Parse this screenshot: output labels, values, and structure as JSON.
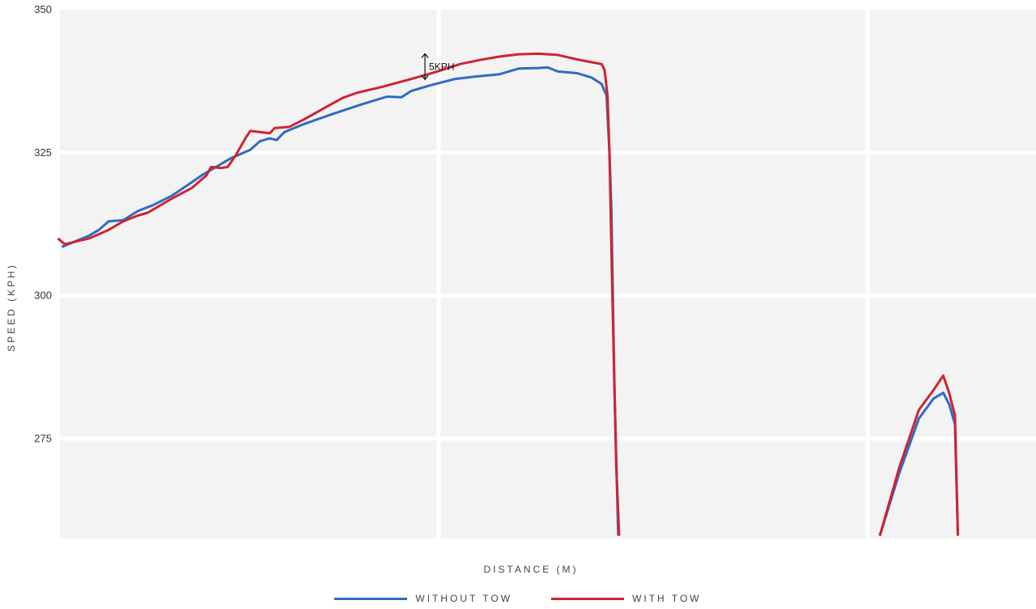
{
  "chart_data": {
    "type": "line",
    "title": "",
    "xlabel": "DISTANCE (M)",
    "ylabel": "SPEED (KPH)",
    "ylim": [
      257.5,
      350
    ],
    "xlim": [
      0,
      1000
    ],
    "yticks": [
      275,
      300,
      325,
      350
    ],
    "grid": true,
    "legend_position": "bottom-center",
    "annotation": {
      "text": "5KPH",
      "x": 374,
      "y_top": 342.3,
      "y_bottom": 337.8
    },
    "series": [
      {
        "name": "WITHOUT TOW",
        "color": "#2e6cc4",
        "segments": [
          [
            [
              2,
              308.5
            ],
            [
              30,
              310.5
            ],
            [
              40,
              311.5
            ],
            [
              50,
              313
            ],
            [
              65,
              313.2
            ],
            [
              80,
              314.8
            ],
            [
              95,
              315.8
            ],
            [
              115,
              317.5
            ],
            [
              135,
              319.8
            ],
            [
              145,
              321
            ],
            [
              175,
              324
            ],
            [
              195,
              325.5
            ],
            [
              205,
              327
            ],
            [
              215,
              327.5
            ],
            [
              222,
              327.2
            ],
            [
              230,
              328.6
            ],
            [
              250,
              330
            ],
            [
              280,
              331.8
            ],
            [
              310,
              333.5
            ],
            [
              335,
              334.8
            ],
            [
              350,
              334.7
            ],
            [
              360,
              335.8
            ],
            [
              380,
              336.8
            ],
            [
              405,
              337.9
            ],
            [
              425,
              338.3
            ],
            [
              450,
              338.7
            ],
            [
              470,
              339.7
            ],
            [
              490,
              339.8
            ],
            [
              500,
              339.9
            ],
            [
              510,
              339.2
            ],
            [
              530,
              338.9
            ],
            [
              545,
              338.1
            ],
            [
              555,
              337
            ],
            [
              560,
              335
            ],
            [
              563,
              325
            ],
            [
              565,
              315
            ],
            [
              568,
              285
            ],
            [
              572,
              258
            ]
          ],
          [
            [
              840,
              258
            ],
            [
              860,
              269
            ],
            [
              880,
              278.5
            ],
            [
              895,
              282
            ],
            [
              905,
              283
            ],
            [
              911,
              281
            ],
            [
              917,
              277.5
            ],
            [
              920,
              258
            ]
          ]
        ]
      },
      {
        "name": "WITH TOW",
        "color": "#d0232f",
        "segments": [
          [
            [
              -2,
              310
            ],
            [
              5,
              309
            ],
            [
              30,
              310
            ],
            [
              50,
              311.5
            ],
            [
              65,
              313
            ],
            [
              80,
              314
            ],
            [
              90,
              314.5
            ],
            [
              100,
              315.5
            ],
            [
              115,
              317
            ],
            [
              135,
              318.8
            ],
            [
              150,
              321
            ],
            [
              155,
              322.5
            ],
            [
              165,
              322.3
            ],
            [
              172,
              322.5
            ],
            [
              180,
              324.5
            ],
            [
              190,
              327.5
            ],
            [
              195,
              328.8
            ],
            [
              215,
              328.4
            ],
            [
              220,
              329.3
            ],
            [
              235,
              329.5
            ],
            [
              250,
              330.8
            ],
            [
              275,
              333.2
            ],
            [
              290,
              334.6
            ],
            [
              305,
              335.5
            ],
            [
              330,
              336.5
            ],
            [
              360,
              337.9
            ],
            [
              385,
              339.1
            ],
            [
              410,
              340.5
            ],
            [
              430,
              341.2
            ],
            [
              450,
              341.8
            ],
            [
              470,
              342.2
            ],
            [
              490,
              342.3
            ],
            [
              510,
              342.1
            ],
            [
              530,
              341.3
            ],
            [
              545,
              340.8
            ],
            [
              555,
              340.5
            ],
            [
              558,
              339.5
            ],
            [
              561,
              335
            ],
            [
              563,
              325
            ],
            [
              566,
              300
            ],
            [
              570,
              270
            ],
            [
              573,
              258
            ]
          ],
          [
            [
              840,
              258
            ],
            [
              860,
              270
            ],
            [
              880,
              280
            ],
            [
              895,
              283.5
            ],
            [
              905,
              286
            ],
            [
              911,
              283
            ],
            [
              917,
              279
            ],
            [
              920,
              258
            ]
          ]
        ]
      }
    ]
  }
}
